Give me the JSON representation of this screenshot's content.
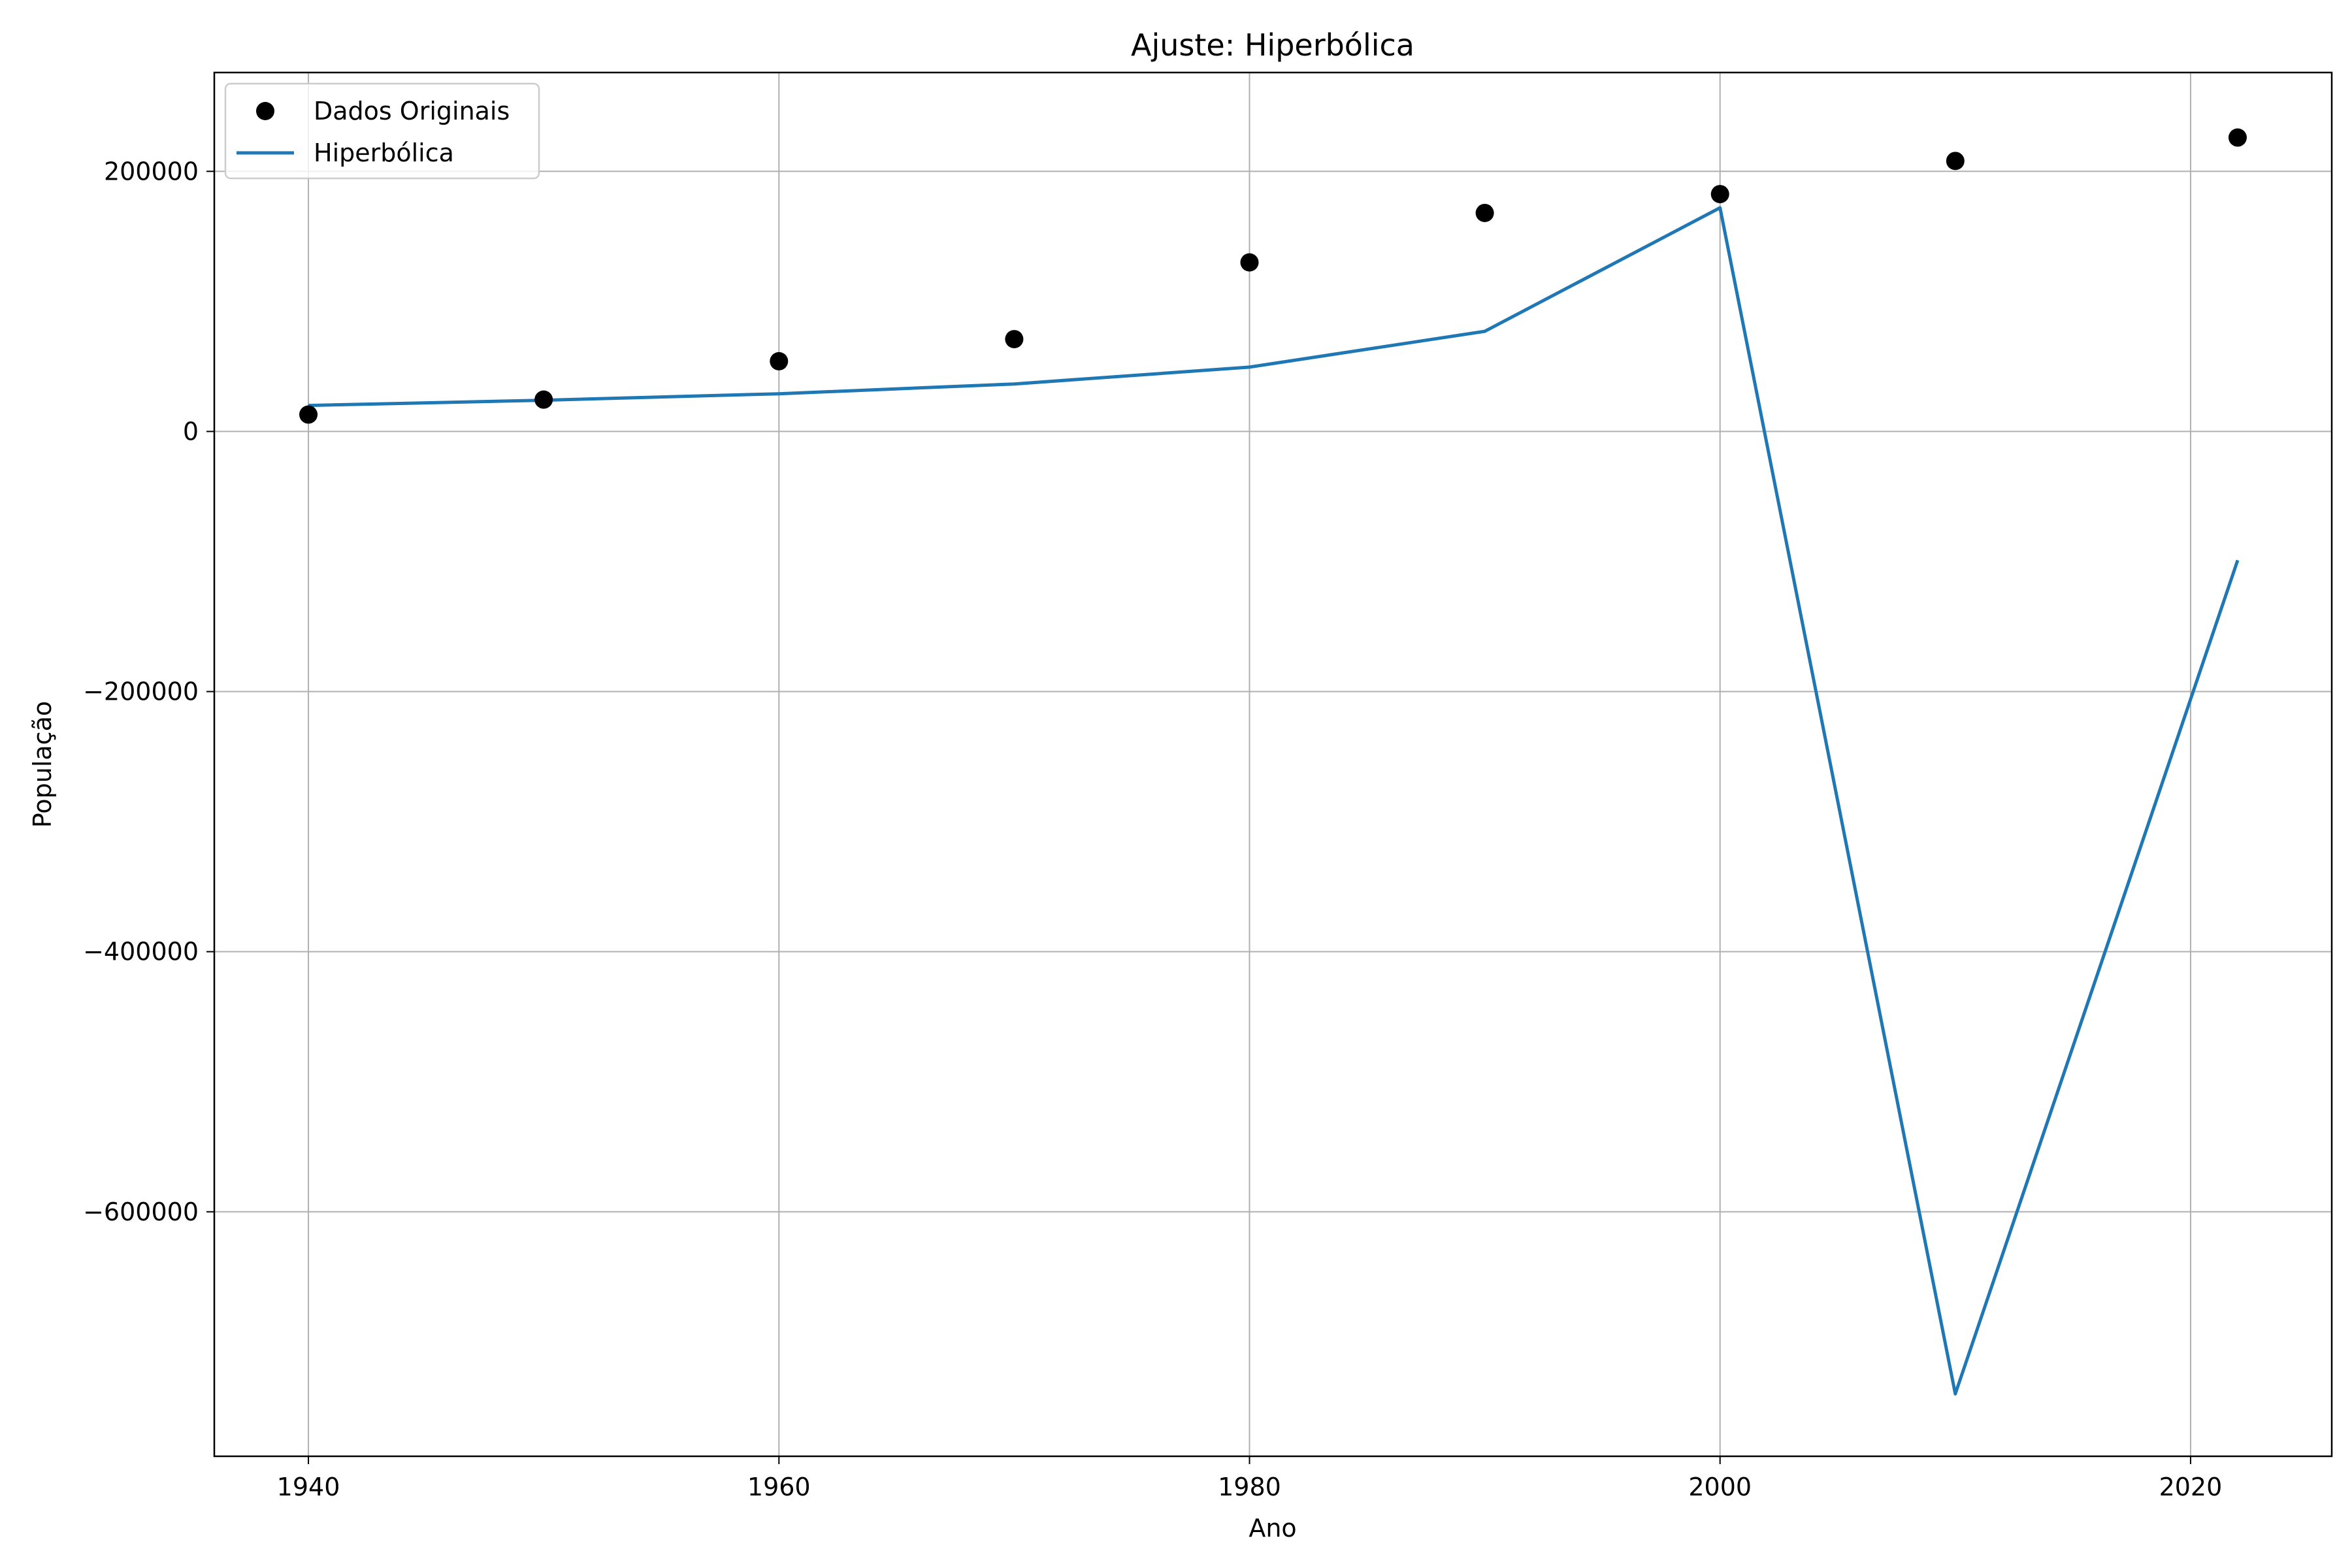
{
  "chart_data": {
    "type": "line",
    "title": "Ajuste: Hiperbólica",
    "xlabel": "Ano",
    "ylabel": "População",
    "xlim": [
      1936,
      2026
    ],
    "ylim": [
      -788000,
      276000
    ],
    "xticks": [
      1940,
      1960,
      1980,
      2000,
      2020
    ],
    "xtick_labels": [
      "1940",
      "1960",
      "1980",
      "2000",
      "2020"
    ],
    "yticks": [
      200000,
      0,
      -200000,
      -400000,
      -600000
    ],
    "ytick_labels": [
      "200000",
      "0",
      "−200000",
      "−400000",
      "−600000"
    ],
    "grid": true,
    "legend_position": "top-left",
    "series": [
      {
        "name": "Dados Originais",
        "kind": "scatter",
        "color": "#000000",
        "x": [
          1940,
          1950,
          1960,
          1970,
          1980,
          1990,
          2000,
          2010,
          2022
        ],
        "y": [
          13000,
          24500,
          54000,
          71000,
          130000,
          168000,
          182500,
          208000,
          226000
        ]
      },
      {
        "name": "Hiperbólica",
        "kind": "line",
        "color": "#1f77b4",
        "x": [
          1940,
          1950,
          1960,
          1970,
          1980,
          1990,
          2000,
          2010,
          2022
        ],
        "y": [
          20000,
          24000,
          29000,
          36500,
          49500,
          77000,
          172000,
          -740000,
          -99000
        ]
      }
    ]
  }
}
